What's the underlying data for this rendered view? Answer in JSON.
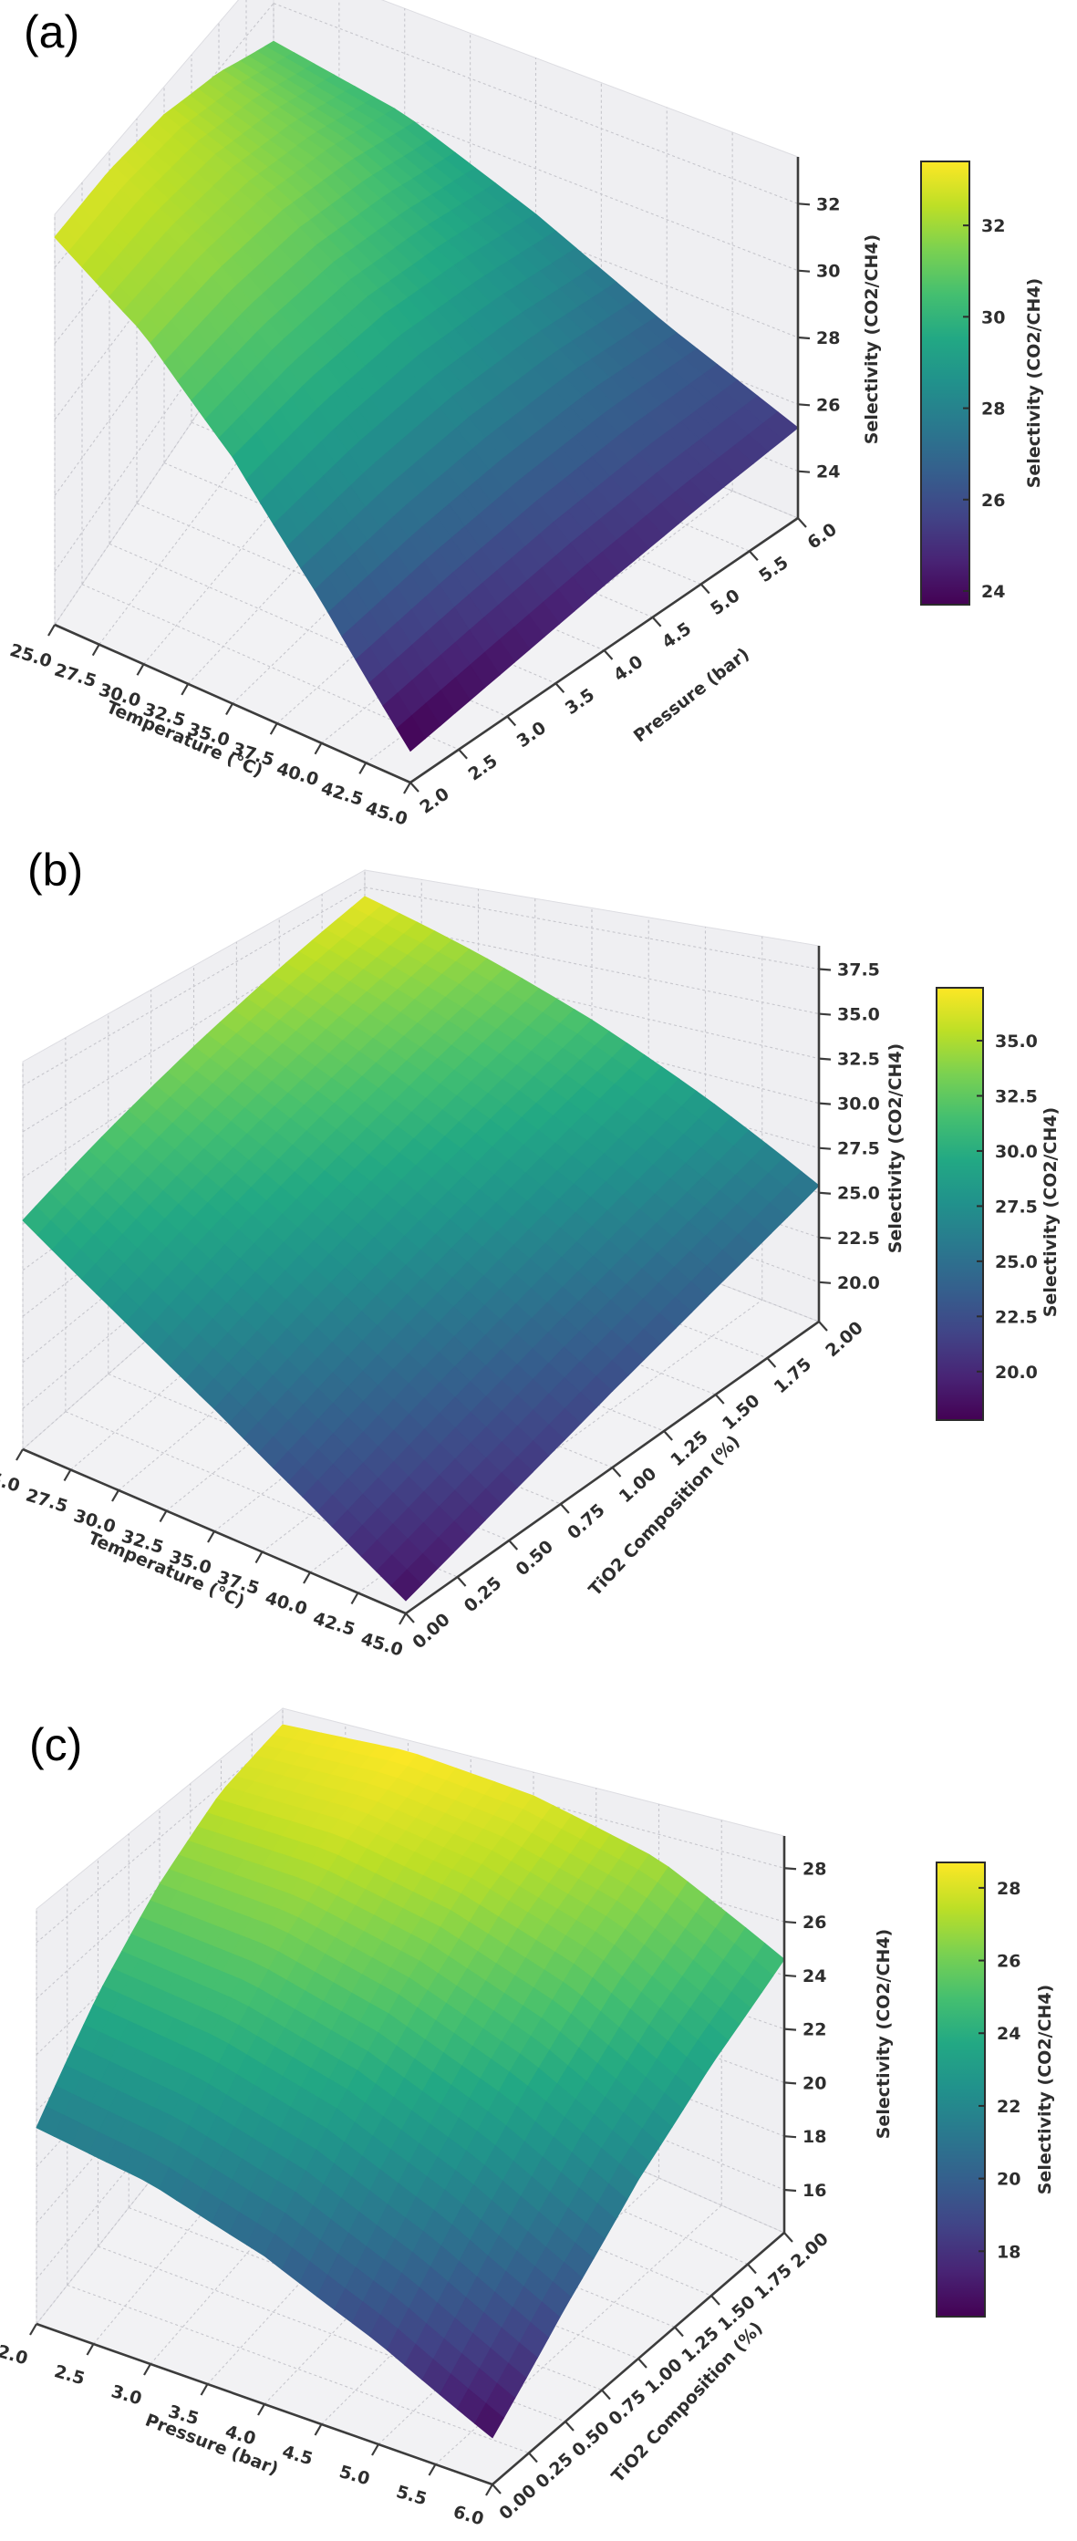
{
  "chart_data": [
    {
      "panel_label": "(a)",
      "type": "surface3d",
      "colormap": "viridis",
      "x_axis": {
        "label": "Temperature (°C)",
        "range": [
          25,
          45
        ],
        "ticks": [
          25.0,
          27.5,
          30.0,
          32.5,
          35.0,
          37.5,
          40.0,
          42.5,
          45.0
        ],
        "tick_labels": [
          "25.0",
          "27.5",
          "30.0",
          "32.5",
          "35.0",
          "37.5",
          "40.0",
          "42.5",
          "45.0"
        ]
      },
      "y_axis": {
        "label": "Pressure (bar)",
        "range": [
          2,
          6
        ],
        "ticks": [
          2.0,
          2.5,
          3.0,
          3.5,
          4.0,
          4.5,
          5.0,
          5.5,
          6.0
        ],
        "tick_labels": [
          "2.0",
          "2.5",
          "3.0",
          "3.5",
          "4.0",
          "4.5",
          "5.0",
          "5.5",
          "6.0"
        ]
      },
      "z_axis": {
        "label": "Selectivity (CO2/CH4)",
        "range": [
          22.6,
          33.4
        ],
        "ticks": [
          24,
          26,
          28,
          30,
          32
        ],
        "tick_labels": [
          "24",
          "26",
          "28",
          "30",
          "32"
        ]
      },
      "colorbar": {
        "label": "Selectivity (CO2/CH4)",
        "range": [
          23.7,
          33.4
        ],
        "ticks": [
          24,
          26,
          28,
          30,
          32
        ],
        "tick_labels": [
          "24",
          "26",
          "28",
          "30",
          "32"
        ]
      },
      "surface": {
        "grid_x": [
          25,
          30,
          35,
          40,
          45
        ],
        "grid_y": [
          2,
          3,
          4,
          5,
          6
        ],
        "z": [
          [
            32.8,
            32.85,
            32.6,
            31.9,
            30.8
          ],
          [
            31.7,
            31.8,
            31.6,
            31.0,
            30.1
          ],
          [
            29.7,
            29.9,
            29.8,
            29.3,
            28.6
          ],
          [
            26.9,
            27.2,
            27.3,
            27.2,
            26.8
          ],
          [
            23.6,
            24.1,
            24.6,
            25.0,
            25.3
          ]
        ]
      }
    },
    {
      "panel_label": "(b)",
      "type": "surface3d",
      "colormap": "viridis",
      "x_axis": {
        "label": "Temperature (°C)",
        "range": [
          25,
          45
        ],
        "ticks": [
          25.0,
          27.5,
          30.0,
          32.5,
          35.0,
          37.5,
          40.0,
          42.5,
          45.0
        ],
        "tick_labels": [
          "25.0",
          "27.5",
          "30.0",
          "32.5",
          "35.0",
          "37.5",
          "40.0",
          "42.5",
          "45.0"
        ]
      },
      "y_axis": {
        "label": "TiO2 Composition (%)",
        "range": [
          0,
          2
        ],
        "ticks": [
          0.0,
          0.25,
          0.5,
          0.75,
          1.0,
          1.25,
          1.5,
          1.75,
          2.0
        ],
        "tick_labels": [
          "0.00",
          "0.25",
          "0.50",
          "0.75",
          "1.00",
          "1.25",
          "1.50",
          "1.75",
          "2.00"
        ]
      },
      "z_axis": {
        "label": "Selectivity (CO2/CH4)",
        "range": [
          17.8,
          38.8
        ],
        "ticks": [
          20.0,
          22.5,
          25.0,
          27.5,
          30.0,
          32.5,
          35.0,
          37.5
        ],
        "tick_labels": [
          "20.0",
          "22.5",
          "25.0",
          "27.5",
          "30.0",
          "32.5",
          "35.0",
          "37.5"
        ]
      },
      "colorbar": {
        "label": "Selectivity (CO2/CH4)",
        "range": [
          17.8,
          37.4
        ],
        "ticks": [
          20.0,
          22.5,
          25.0,
          27.5,
          30.0,
          32.5,
          35.0
        ],
        "tick_labels": [
          "20.0",
          "22.5",
          "25.0",
          "27.5",
          "30.0",
          "32.5",
          "35.0"
        ]
      },
      "surface": {
        "grid_x": [
          25,
          30,
          35,
          40,
          45
        ],
        "grid_y": [
          0,
          0.5,
          1.0,
          1.5,
          2.0
        ],
        "z": [
          [
            30.2,
            32.0,
            33.7,
            35.3,
            36.8
          ],
          [
            27.6,
            29.5,
            31.2,
            32.8,
            34.3
          ],
          [
            24.9,
            26.8,
            28.5,
            30.1,
            31.6
          ],
          [
            21.9,
            23.8,
            25.5,
            27.1,
            28.6
          ],
          [
            18.6,
            20.5,
            22.3,
            23.9,
            25.4
          ]
        ]
      }
    },
    {
      "panel_label": "(c)",
      "type": "surface3d",
      "colormap": "viridis",
      "x_axis": {
        "label": "Pressure (bar)",
        "range": [
          2,
          6
        ],
        "ticks": [
          2.0,
          2.5,
          3.0,
          3.5,
          4.0,
          4.5,
          5.0,
          5.5,
          6.0
        ],
        "tick_labels": [
          "2.0",
          "2.5",
          "3.0",
          "3.5",
          "4.0",
          "4.5",
          "5.0",
          "5.5",
          "6.0"
        ]
      },
      "y_axis": {
        "label": "TiO2 Composition (%)",
        "range": [
          0,
          2
        ],
        "ticks": [
          0.0,
          0.25,
          0.5,
          0.75,
          1.0,
          1.25,
          1.5,
          1.75,
          2.0
        ],
        "tick_labels": [
          "0.00",
          "0.25",
          "0.50",
          "0.75",
          "1.00",
          "1.25",
          "1.50",
          "1.75",
          "2.00"
        ]
      },
      "z_axis": {
        "label": "Selectivity (CO2/CH4)",
        "range": [
          14.4,
          29.2
        ],
        "ticks": [
          16,
          18,
          20,
          22,
          24,
          26,
          28
        ],
        "tick_labels": [
          "16",
          "18",
          "20",
          "22",
          "24",
          "26",
          "28"
        ]
      },
      "colorbar": {
        "label": "Selectivity (CO2/CH4)",
        "range": [
          16.2,
          28.7
        ],
        "ticks": [
          18,
          20,
          22,
          24,
          26,
          28
        ],
        "tick_labels": [
          "18",
          "20",
          "22",
          "24",
          "26",
          "28"
        ]
      },
      "surface": {
        "grid_x": [
          2,
          3,
          4,
          5,
          6
        ],
        "grid_y": [
          0,
          0.5,
          1.0,
          1.5,
          2.0
        ],
        "z": [
          [
            21.4,
            24.0,
            26.1,
            27.7,
            28.4
          ],
          [
            21.2,
            23.9,
            26.2,
            27.9,
            28.7
          ],
          [
            20.3,
            23.1,
            25.4,
            27.2,
            28.2
          ],
          [
            18.7,
            21.5,
            23.9,
            25.8,
            27.0
          ],
          [
            16.5,
            19.3,
            21.7,
            23.4,
            24.6
          ]
        ]
      }
    }
  ],
  "colormap": {
    "name": "viridis",
    "stops": [
      "#440154",
      "#482475",
      "#414487",
      "#355f8d",
      "#2a788e",
      "#21918c",
      "#22a884",
      "#44bf70",
      "#7ad151",
      "#bddf26",
      "#fde725"
    ]
  },
  "style_colors": {
    "pane_fill": "#efeff2",
    "floor_fill": "#f2f2f4",
    "grid_line": "#c6c6cc",
    "spine": "#3c3c3c",
    "text": "#2e2e2e"
  }
}
